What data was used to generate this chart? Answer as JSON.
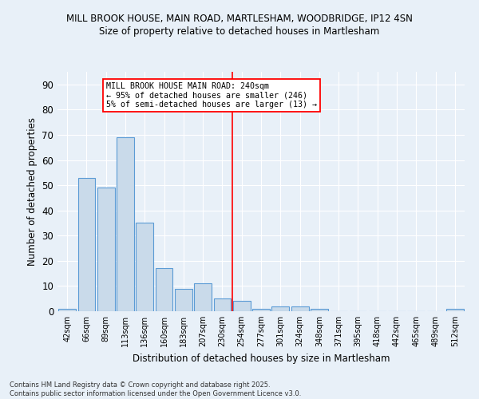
{
  "title_line1": "MILL BROOK HOUSE, MAIN ROAD, MARTLESHAM, WOODBRIDGE, IP12 4SN",
  "title_line2": "Size of property relative to detached houses in Martlesham",
  "xlabel": "Distribution of detached houses by size in Martlesham",
  "ylabel": "Number of detached properties",
  "categories": [
    "42sqm",
    "66sqm",
    "89sqm",
    "113sqm",
    "136sqm",
    "160sqm",
    "183sqm",
    "207sqm",
    "230sqm",
    "254sqm",
    "277sqm",
    "301sqm",
    "324sqm",
    "348sqm",
    "371sqm",
    "395sqm",
    "418sqm",
    "442sqm",
    "465sqm",
    "489sqm",
    "512sqm"
  ],
  "values": [
    1,
    53,
    49,
    69,
    35,
    17,
    9,
    11,
    5,
    4,
    1,
    2,
    2,
    1,
    0,
    0,
    0,
    0,
    0,
    0,
    1
  ],
  "bar_color": "#c9daea",
  "bar_edge_color": "#5b9bd5",
  "vline_x_index": 8.5,
  "vline_color": "red",
  "annotation_text": "MILL BROOK HOUSE MAIN ROAD: 240sqm\n← 95% of detached houses are smaller (246)\n5% of semi-detached houses are larger (13) →",
  "annotation_box_color": "white",
  "annotation_box_edge": "red",
  "ylim": [
    0,
    95
  ],
  "yticks": [
    0,
    10,
    20,
    30,
    40,
    50,
    60,
    70,
    80,
    90
  ],
  "background_color": "#e8f0f8",
  "grid_color": "white",
  "footnote": "Contains HM Land Registry data © Crown copyright and database right 2025.\nContains public sector information licensed under the Open Government Licence v3.0."
}
